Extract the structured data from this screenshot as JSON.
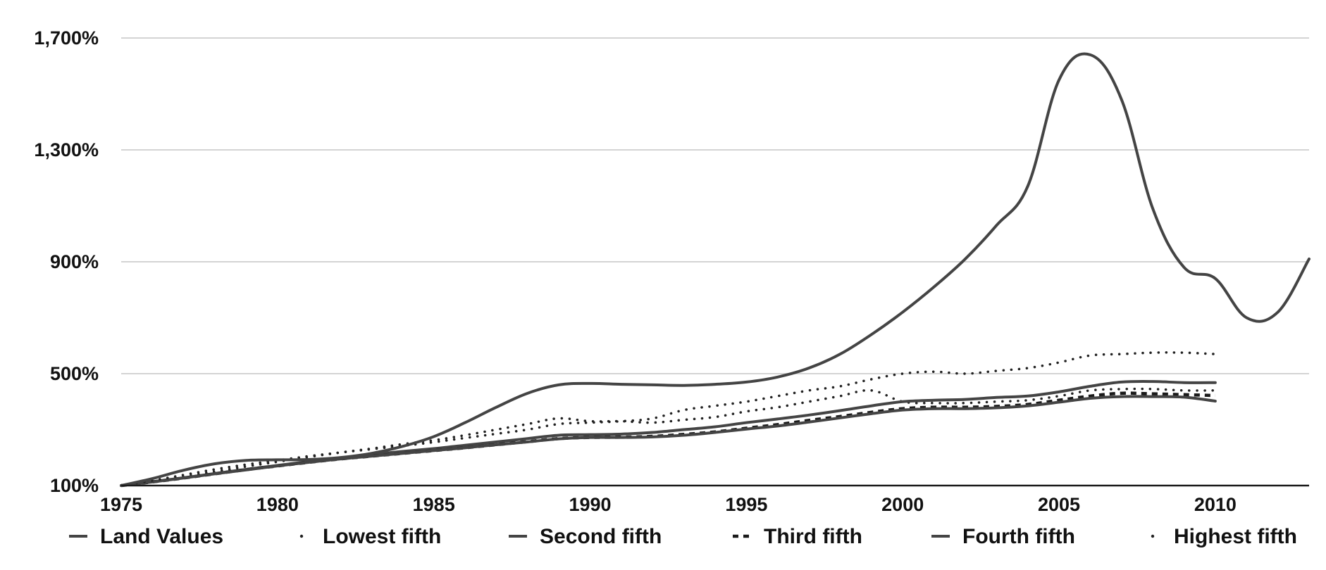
{
  "chart_data": {
    "type": "line",
    "title": "",
    "xlabel": "",
    "ylabel": "",
    "xlim": [
      1975,
      2013
    ],
    "ylim": [
      100,
      1700
    ],
    "y_ticks": [
      100,
      500,
      900,
      1300,
      1700
    ],
    "y_tick_labels": [
      "100%",
      "500%",
      "900%",
      "1,300%",
      "1,700%"
    ],
    "x_ticks": [
      1975,
      1980,
      1985,
      1990,
      1995,
      2000,
      2005,
      2010
    ],
    "x_tick_labels": [
      "1975",
      "1980",
      "1985",
      "1990",
      "1995",
      "2000",
      "2005",
      "2010"
    ],
    "grid": true,
    "legend_position": "bottom",
    "series": [
      {
        "name": "Land Values",
        "style": "solid",
        "color": "#444444",
        "x": [
          1975,
          1976,
          1977,
          1978,
          1979,
          1980,
          1981,
          1982,
          1983,
          1984,
          1985,
          1986,
          1987,
          1988,
          1989,
          1990,
          1991,
          1992,
          1993,
          1994,
          1995,
          1996,
          1997,
          1998,
          1999,
          2000,
          2001,
          2002,
          2003,
          2004,
          2005,
          2006,
          2007,
          2008,
          2009,
          2010,
          2011,
          2012,
          2013
        ],
        "y": [
          100,
          125,
          155,
          178,
          190,
          192,
          193,
          200,
          215,
          240,
          275,
          325,
          380,
          430,
          460,
          465,
          462,
          460,
          458,
          462,
          470,
          488,
          520,
          570,
          640,
          720,
          810,
          910,
          1030,
          1170,
          1550,
          1640,
          1480,
          1090,
          880,
          840,
          700,
          720,
          910
        ]
      },
      {
        "name": "Lowest fifth",
        "style": "dotted",
        "color": "#222222",
        "x": [
          1975,
          1976,
          1977,
          1978,
          1979,
          1980,
          1981,
          1982,
          1983,
          1984,
          1985,
          1986,
          1987,
          1988,
          1989,
          1990,
          1991,
          1992,
          1993,
          1994,
          1995,
          1996,
          1997,
          1998,
          1999,
          2000,
          2001,
          2002,
          2003,
          2004,
          2005,
          2006,
          2007,
          2008,
          2009,
          2010
        ],
        "y": [
          100,
          115,
          132,
          150,
          168,
          185,
          202,
          218,
          232,
          248,
          262,
          280,
          300,
          320,
          340,
          330,
          330,
          325,
          335,
          345,
          365,
          380,
          400,
          420,
          440,
          400,
          395,
          395,
          400,
          405,
          420,
          440,
          445,
          445,
          440,
          440
        ]
      },
      {
        "name": "Second fifth",
        "style": "solid",
        "color": "#444444",
        "x": [
          1975,
          1976,
          1977,
          1978,
          1979,
          1980,
          1981,
          1982,
          1983,
          1984,
          1985,
          1986,
          1987,
          1988,
          1989,
          1990,
          1991,
          1992,
          1993,
          1994,
          1995,
          1996,
          1997,
          1998,
          1999,
          2000,
          2001,
          2002,
          2003,
          2004,
          2005,
          2006,
          2007,
          2008,
          2009,
          2010
        ],
        "y": [
          100,
          114,
          128,
          143,
          158,
          172,
          186,
          199,
          211,
          222,
          232,
          244,
          256,
          268,
          280,
          282,
          284,
          290,
          300,
          310,
          325,
          338,
          352,
          368,
          385,
          400,
          405,
          408,
          415,
          420,
          435,
          455,
          470,
          472,
          468,
          468
        ]
      },
      {
        "name": "Third fifth",
        "style": "dashed",
        "color": "#1a1a1a",
        "x": [
          1975,
          1976,
          1977,
          1978,
          1979,
          1980,
          1981,
          1982,
          1983,
          1984,
          1985,
          1986,
          1987,
          1988,
          1989,
          1990,
          1991,
          1992,
          1993,
          1994,
          1995,
          1996,
          1997,
          1998,
          1999,
          2000,
          2001,
          2002,
          2003,
          2004,
          2005,
          2006,
          2007,
          2008,
          2009,
          2010
        ],
        "y": [
          100,
          113,
          127,
          142,
          157,
          170,
          183,
          195,
          205,
          215,
          225,
          235,
          246,
          257,
          268,
          272,
          273,
          276,
          283,
          292,
          305,
          318,
          333,
          347,
          362,
          375,
          380,
          380,
          383,
          390,
          405,
          420,
          430,
          428,
          425,
          422
        ]
      },
      {
        "name": "Fourth fifth",
        "style": "solid",
        "color": "#444444",
        "x": [
          1975,
          1976,
          1977,
          1978,
          1979,
          1980,
          1981,
          1982,
          1983,
          1984,
          1985,
          1986,
          1987,
          1988,
          1989,
          1990,
          1991,
          1992,
          1993,
          1994,
          1995,
          1996,
          1997,
          1998,
          1999,
          2000,
          2001,
          2002,
          2003,
          2004,
          2005,
          2006,
          2007,
          2008,
          2009,
          2010
        ],
        "y": [
          100,
          113,
          127,
          142,
          156,
          170,
          183,
          195,
          205,
          215,
          225,
          235,
          246,
          256,
          267,
          272,
          272,
          274,
          280,
          290,
          302,
          313,
          327,
          342,
          357,
          370,
          375,
          375,
          378,
          385,
          398,
          412,
          418,
          418,
          416,
          402
        ]
      },
      {
        "name": "Highest fifth",
        "style": "dotted",
        "color": "#222222",
        "x": [
          1975,
          1976,
          1977,
          1978,
          1979,
          1980,
          1981,
          1982,
          1983,
          1984,
          1985,
          1986,
          1987,
          1988,
          1989,
          1990,
          1991,
          1992,
          1993,
          1994,
          1995,
          1996,
          1997,
          1998,
          1999,
          2000,
          2001,
          2002,
          2003,
          2004,
          2005,
          2006,
          2007,
          2008,
          2009,
          2010
        ],
        "y": [
          100,
          118,
          138,
          158,
          175,
          190,
          205,
          218,
          230,
          242,
          255,
          270,
          285,
          300,
          320,
          325,
          330,
          340,
          370,
          385,
          400,
          420,
          440,
          455,
          480,
          500,
          507,
          500,
          510,
          520,
          540,
          565,
          570,
          575,
          575,
          570
        ]
      }
    ]
  }
}
